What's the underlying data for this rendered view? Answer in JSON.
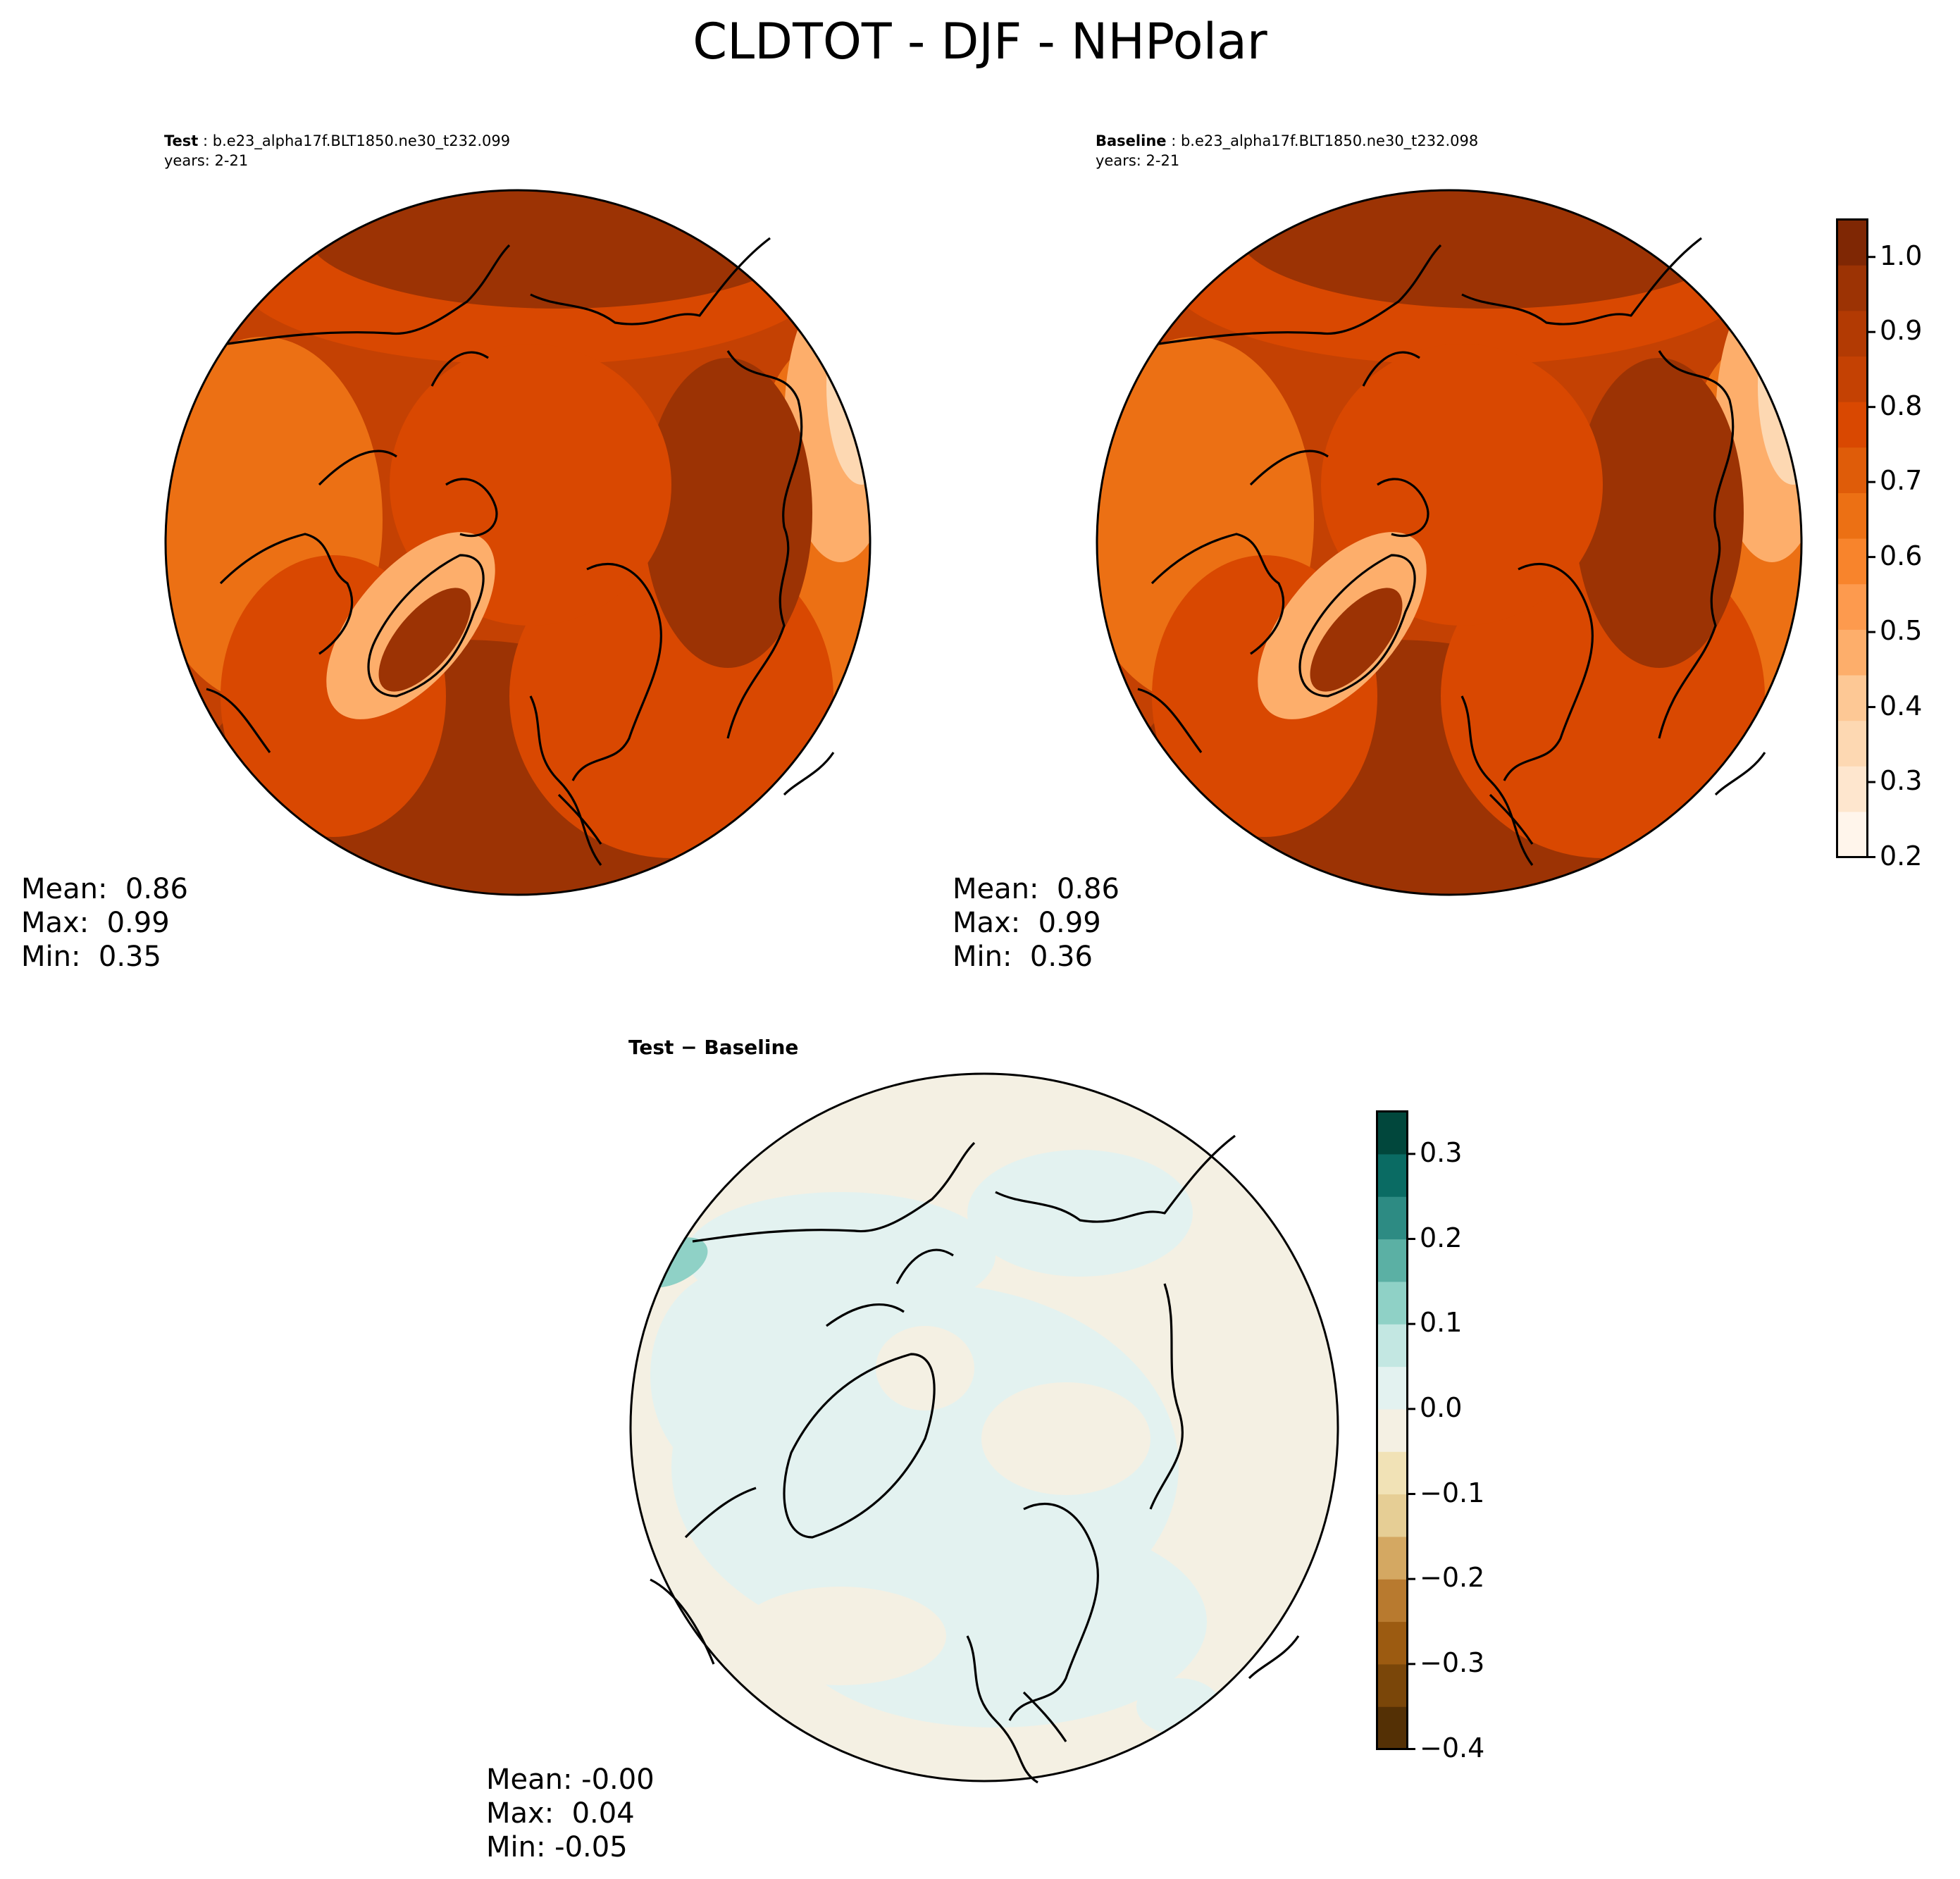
{
  "title": "CLDTOT - DJF - NHPolar",
  "test": {
    "label": "Test",
    "case": "b.e23_alpha17f.BLT1850.ne30_t232.099",
    "years": "years: 2-21",
    "mean": "Mean:  0.86",
    "max": "Max:  0.99",
    "min": "Min:  0.35"
  },
  "baseline": {
    "label": "Baseline",
    "case": "b.e23_alpha17f.BLT1850.ne30_t232.098",
    "years": "years: 2-21",
    "mean": "Mean:  0.86",
    "max": "Max:  0.99",
    "min": "Min:  0.36"
  },
  "diff": {
    "title": "Test − Baseline",
    "mean": "Mean: -0.00",
    "max": "Max:  0.04",
    "min": "Min: -0.05"
  },
  "colorbar_main": {
    "ticks": [
      "0.2",
      "0.3",
      "0.4",
      "0.5",
      "0.6",
      "0.7",
      "0.8",
      "0.9",
      "1.0"
    ],
    "range": [
      0.2,
      1.05
    ],
    "colors": [
      "#fff5eb",
      "#fee6ce",
      "#fdd8b2",
      "#fdc895",
      "#fdae6b",
      "#fd9a4e",
      "#f8842c",
      "#ec7014",
      "#df5c09",
      "#d94801",
      "#c44103",
      "#b23a03",
      "#9c3304",
      "#7f2704"
    ]
  },
  "colorbar_diff": {
    "ticks": [
      "0.3",
      "0.2",
      "0.1",
      "0.0",
      "−0.1",
      "−0.2",
      "−0.3",
      "−0.4"
    ],
    "range": [
      -0.4,
      0.35
    ],
    "colors": [
      "#543005",
      "#7a4609",
      "#9c5b11",
      "#b87a2f",
      "#d4a862",
      "#e6ce95",
      "#f1e2b6",
      "#f4f0e3",
      "#e3f2f0",
      "#c3e7e2",
      "#8fd1c6",
      "#5bb0a4",
      "#2d8b83",
      "#0a6b63",
      "#01473c"
    ]
  },
  "map_colors": {
    "main_bg": "#c44103",
    "main_dark": "#9c3304",
    "main_mid": "#d94801",
    "main_light": "#ec7014",
    "main_pale": "#fdae6b",
    "main_pale2": "#fdd8b2",
    "diff_bg": "#f4f0e3",
    "diff_cyan": "#e3f2f0",
    "diff_teal": "#8fd1c6"
  }
}
